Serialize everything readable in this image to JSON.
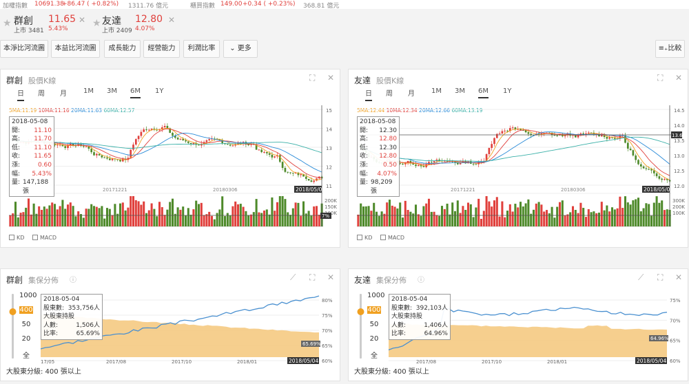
{
  "topbar": {
    "idx1_name": "加權指數",
    "idx1_value": "10691.38",
    "idx1_change": "+86.47 ( +0.82%)",
    "idx1_vol": "1311.76 億元",
    "idx2_name": "櫃買指數",
    "idx2_value": "149.00",
    "idx2_change": "+0.34 ( +0.23%)",
    "idx2_vol": "368.81 億元"
  },
  "stocks": [
    {
      "name": "群創",
      "price": "11.65",
      "market": "上市 3481",
      "pct": "5.43%"
    },
    {
      "name": "友達",
      "price": "12.80",
      "market": "上市 2409",
      "pct": "4.07%"
    }
  ],
  "toolbar": {
    "buttons": [
      "本淨比河流圖",
      "本益比河流圖",
      "成長能力",
      "經營能力",
      "利潤比率"
    ],
    "more": "更多",
    "compare": "比較"
  },
  "colors": {
    "up": "#e0403c",
    "down": "#4e8a2a",
    "ma5": "#f0a020",
    "ma10": "#e0403c",
    "ma20": "#2a8bd8",
    "ma60": "#3ab0a8",
    "dist": "#f5c77a",
    "line": "#4a90d0"
  },
  "kline": [
    {
      "name": "群創",
      "title": "股價K線",
      "period_tabs": [
        "日",
        "周",
        "月"
      ],
      "range_tabs": [
        "1M",
        "3M",
        "6M",
        "1Y"
      ],
      "ma": [
        "5MA:11.19",
        "10MA:11.16",
        "20MA:11.63",
        "60MA:12.57"
      ],
      "yticks": [
        "15",
        "14",
        "13",
        "12",
        "11"
      ],
      "xticks": [
        "20171221",
        "20180306"
      ],
      "cur_date": "2018/05/08",
      "vol_ticks": [
        "200K",
        "150K",
        "100K"
      ],
      "vol_pct": "7%",
      "tip": {
        "date": "2018-05-08",
        "rows": [
          [
            "開:",
            "11.10"
          ],
          [
            "高:",
            "11.70"
          ],
          [
            "低:",
            "11.10"
          ],
          [
            "收:",
            "11.65"
          ],
          [
            "漲:",
            "0.60"
          ],
          [
            "幅:",
            "5.43%"
          ],
          [
            "量:",
            "147,188 張"
          ]
        ]
      },
      "indicators": [
        "KD",
        "MACD"
      ]
    },
    {
      "name": "友達",
      "title": "股價K線",
      "period_tabs": [
        "日",
        "周",
        "月"
      ],
      "range_tabs": [
        "1M",
        "3M",
        "6M",
        "1Y"
      ],
      "ma": [
        "5MA:12.44",
        "10MA:12.34",
        "20MA:12.66",
        "60MA:13.19"
      ],
      "yticks": [
        "14.5",
        "14.0",
        "13.5",
        "13.0",
        "12.5",
        "12.0"
      ],
      "xticks": [
        "20171221",
        "20180306"
      ],
      "cur_date": "2018/05/08",
      "cur_price": "13.6",
      "vol_ticks": [
        "300K",
        "200K",
        "100K"
      ],
      "tip": {
        "date": "2018-05-08",
        "rows": [
          [
            "開:",
            "12.30"
          ],
          [
            "高:",
            "12.80"
          ],
          [
            "低:",
            "12.30"
          ],
          [
            "收:",
            "12.80"
          ],
          [
            "漲:",
            "0.50"
          ],
          [
            "幅:",
            "4.07%"
          ],
          [
            "量:",
            "98,209 張"
          ]
        ]
      },
      "indicators": [
        "KD",
        "MACD"
      ]
    }
  ],
  "dist": [
    {
      "name": "群創",
      "title": "集保分佈",
      "levels": [
        "1000",
        "400",
        "50",
        "20",
        "全"
      ],
      "selected": "400",
      "yticks": [
        "80%",
        "75%",
        "70%",
        "65%",
        "60%"
      ],
      "xticks": [
        "17/05",
        "2017/08",
        "2017/10",
        "2018/01"
      ],
      "cur_date": "2018/05/04",
      "cur_val": "65.69%",
      "tip": {
        "date": "2018-05-04",
        "rows": [
          [
            "股東數:",
            "353,756人"
          ],
          [
            "大股東持股",
            ""
          ],
          [
            "人數:",
            "1,506人"
          ],
          [
            "比率:",
            "65.69%"
          ]
        ]
      },
      "footer": "大股東分級: 400 張以上"
    },
    {
      "name": "友達",
      "title": "集保分佈",
      "levels": [
        "1000",
        "400",
        "50",
        "20",
        "全"
      ],
      "selected": "400",
      "yticks": [
        "75%",
        "70%",
        "65%",
        "60%"
      ],
      "xticks": [
        "2017/08",
        "2017/10",
        "2018/01"
      ],
      "cur_date": "2018/05/04",
      "cur_val": "64.96%",
      "tip": {
        "date": "2018-05-04",
        "rows": [
          [
            "股東數:",
            "392,103人"
          ],
          [
            "大股東持股",
            ""
          ],
          [
            "人數:",
            "1,406人"
          ],
          [
            "比率:",
            "64.96%"
          ]
        ]
      },
      "footer": "大股東分級: 400 張以上"
    }
  ]
}
